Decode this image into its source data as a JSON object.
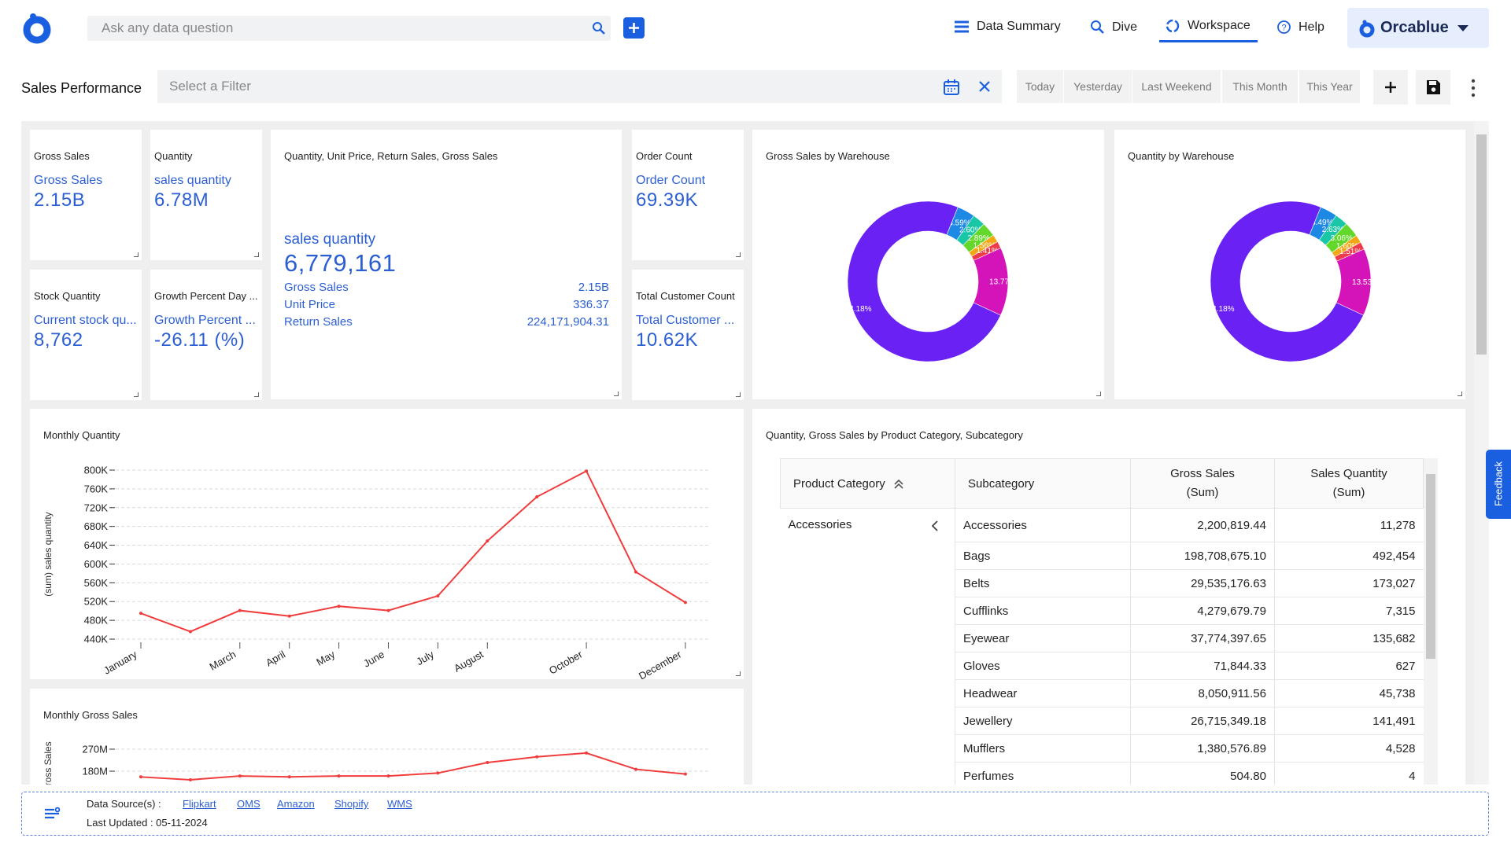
{
  "header": {
    "search_placeholder": "Ask any data question",
    "nav": [
      "Data Summary",
      "Dive",
      "Workspace",
      "Help"
    ],
    "user": "Orcablue"
  },
  "toolbar": {
    "title": "Sales Performance",
    "filter_placeholder": "Select a Filter",
    "quick_filters": [
      "Today",
      "Yesterday",
      "Last Weekend",
      "This Month",
      "This Year"
    ]
  },
  "kpis": [
    {
      "title": "Gross Sales",
      "label": "Gross Sales",
      "value": "2.15B"
    },
    {
      "title": "Quantity",
      "label": "sales quantity",
      "value": "6.78M"
    },
    {
      "title": "Order Count",
      "label": "Order Count",
      "value": "69.39K"
    },
    {
      "title": "Stock Quantity",
      "label": "Current stock qu...",
      "value": "8,762"
    },
    {
      "title": "Growth Percent Day ...",
      "label": "Growth Percent ...",
      "value": "-26.11 (%)"
    },
    {
      "title": "Total Customer Count",
      "label": "Total Customer ...",
      "value": "10.62K"
    }
  ],
  "multi_kpi": {
    "title": "Quantity, Unit Price, Return Sales, Gross Sales",
    "main_label": "sales quantity",
    "main_value": "6,779,161",
    "rows": [
      [
        "Gross Sales",
        "2.15B"
      ],
      [
        "Unit Price",
        "336.37"
      ],
      [
        "Return Sales",
        "224,171,904.31"
      ]
    ]
  },
  "chart_data": [
    {
      "type": "donut",
      "title": "Gross Sales by Warehouse",
      "values": [
        3.59,
        2.6,
        2.89,
        1.56,
        1.41,
        13.77,
        74.18
      ],
      "value_labels": [
        "3.59%",
        "2.60%",
        "2.89%",
        "1.56%",
        "1.41%",
        "13.77%",
        "74.18%"
      ],
      "colors": [
        "#1e88e5",
        "#19c7a6",
        "#63d82a",
        "#f3a712",
        "#ee3b4a",
        "#d414b8",
        "#6a22f4"
      ]
    },
    {
      "type": "donut",
      "title": "Quantity by Warehouse",
      "values": [
        3.49,
        2.63,
        3.06,
        1.6,
        1.51,
        13.53,
        74.18
      ],
      "value_labels": [
        "3.49%",
        "2.63%",
        "3.06%",
        "1.60%",
        "1.51%",
        "13.53%",
        "74.18%"
      ],
      "colors": [
        "#1e88e5",
        "#19c7a6",
        "#63d82a",
        "#f3a712",
        "#ee3b4a",
        "#d414b8",
        "#6a22f4"
      ]
    },
    {
      "type": "line",
      "title": "Monthly Quantity",
      "y_label": "(sum) sales quantity",
      "color": "#f03c3c",
      "categories": [
        "January",
        null,
        "March",
        "April",
        "May",
        "June",
        "July",
        "August",
        null,
        "October",
        null,
        "December"
      ],
      "values": [
        495000,
        456000,
        501000,
        489000,
        510000,
        501000,
        532000,
        649000,
        743000,
        798000,
        583000,
        518000
      ],
      "ylim": [
        440000,
        800000
      ],
      "yticks": [
        {
          "value": 440000,
          "label": "440K"
        },
        {
          "value": 480000,
          "label": "480K"
        },
        {
          "value": 520000,
          "label": "520K"
        },
        {
          "value": 560000,
          "label": "560K"
        },
        {
          "value": 600000,
          "label": "600K"
        },
        {
          "value": 640000,
          "label": "640K"
        },
        {
          "value": 680000,
          "label": "680K"
        },
        {
          "value": 720000,
          "label": "720K"
        },
        {
          "value": 760000,
          "label": "760K"
        },
        {
          "value": 800000,
          "label": "800K"
        }
      ],
      "grid": true
    },
    {
      "type": "line",
      "title": "Monthly Gross Sales",
      "y_label": "(sum) Gross Sales",
      "color": "#f03c3c",
      "values": [
        156500000,
        144800000,
        160400000,
        156500000,
        160400000,
        160400000,
        172200000,
        215200000,
        238700000,
        254300000,
        187800000,
        168300000
      ],
      "ylim": [
        90000000,
        270000000
      ],
      "yticks": [
        {
          "value": 180000000,
          "label": "180M"
        },
        {
          "value": 270000000,
          "label": "270M"
        }
      ],
      "grid": true
    }
  ],
  "table": {
    "title": "Quantity, Gross Sales by Product Category, Subcategory",
    "columns": [
      "Product Category",
      "Subcategory",
      "Gross Sales (Sum)",
      "Sales Quantity (Sum)"
    ],
    "groups": [
      {
        "category": "Accessories",
        "rows": [
          [
            "Accessories",
            "2,200,819.44",
            "11,278"
          ],
          [
            "Bags",
            "198,708,675.10",
            "492,454"
          ],
          [
            "Belts",
            "29,535,176.63",
            "173,027"
          ],
          [
            "Cufflinks",
            "4,279,679.79",
            "7,315"
          ],
          [
            "Eyewear",
            "37,774,397.65",
            "135,682"
          ],
          [
            "Gloves",
            "71,844.33",
            "627"
          ],
          [
            "Headwear",
            "8,050,911.56",
            "45,738"
          ],
          [
            "Jewellery",
            "26,715,349.18",
            "141,491"
          ],
          [
            "Mufflers",
            "1,380,576.89",
            "4,528"
          ],
          [
            "Perfumes",
            "504.80",
            "4"
          ]
        ]
      }
    ]
  },
  "footer": {
    "sources_label": "Data Source(s) :",
    "sources": [
      "Flipkart",
      "OMS",
      "Amazon",
      "Shopify",
      "WMS"
    ],
    "last_updated": "Last Updated : 05-11-2024"
  },
  "feedback": "Feedback"
}
